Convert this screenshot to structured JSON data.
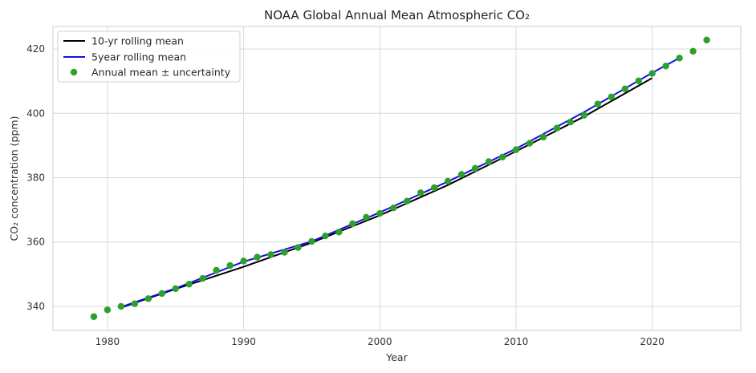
{
  "chart_data": {
    "type": "line",
    "title": "NOAA Global Annual Mean Atmospheric CO₂",
    "xlabel": "Year",
    "ylabel": "CO₂ concentration (ppm)",
    "xlim": [
      1976,
      2026.5
    ],
    "ylim": [
      332.5,
      427
    ],
    "x_ticks": [
      1980,
      1990,
      2000,
      2010,
      2020
    ],
    "y_ticks": [
      340,
      360,
      380,
      400,
      420
    ],
    "grid": true,
    "legend_position": "top-left",
    "colors": {
      "rolling10": "#000000",
      "rolling5": "#1010e8",
      "annual": "#2ca02c",
      "grid": "#d9d9d9",
      "frame": "#cccccc"
    },
    "series": [
      {
        "name": "10-yr rolling mean",
        "kind": "line",
        "x": [
          1981,
          1985,
          1990,
          1995,
          2000,
          2005,
          2010,
          2015,
          2020
        ],
        "y": [
          339.6,
          345.4,
          352.3,
          359.8,
          368.3,
          377.7,
          388.2,
          399.0,
          411.0
        ]
      },
      {
        "name": "5year rolling mean",
        "kind": "line",
        "x": [
          1981,
          1985,
          1990,
          1995,
          2000,
          2005,
          2010,
          2015,
          2020,
          2022
        ],
        "y": [
          339.8,
          345.6,
          353.9,
          360.2,
          369.2,
          378.8,
          389.0,
          400.4,
          412.6,
          417.2
        ]
      },
      {
        "name": "Annual mean ± uncertainty",
        "kind": "scatter",
        "x": [
          1979,
          1980,
          1981,
          1982,
          1983,
          1984,
          1985,
          1986,
          1987,
          1988,
          1989,
          1990,
          1991,
          1992,
          1993,
          1994,
          1995,
          1996,
          1997,
          1998,
          1999,
          2000,
          2001,
          2002,
          2003,
          2004,
          2005,
          2006,
          2007,
          2008,
          2009,
          2010,
          2011,
          2012,
          2013,
          2014,
          2015,
          2016,
          2017,
          2018,
          2019,
          2020,
          2021,
          2022,
          2023,
          2024
        ],
        "y": [
          336.8,
          338.9,
          340.0,
          340.8,
          342.4,
          344.0,
          345.5,
          346.9,
          348.7,
          351.2,
          352.7,
          354.1,
          355.3,
          356.1,
          356.8,
          358.3,
          360.2,
          361.9,
          363.1,
          365.7,
          367.7,
          368.9,
          370.6,
          372.7,
          375.3,
          376.9,
          378.9,
          381.0,
          382.9,
          385.0,
          386.4,
          388.7,
          390.7,
          392.6,
          395.4,
          397.3,
          399.4,
          402.9,
          405.1,
          407.6,
          410.1,
          412.4,
          414.7,
          417.2,
          419.3,
          422.8
        ]
      }
    ]
  }
}
